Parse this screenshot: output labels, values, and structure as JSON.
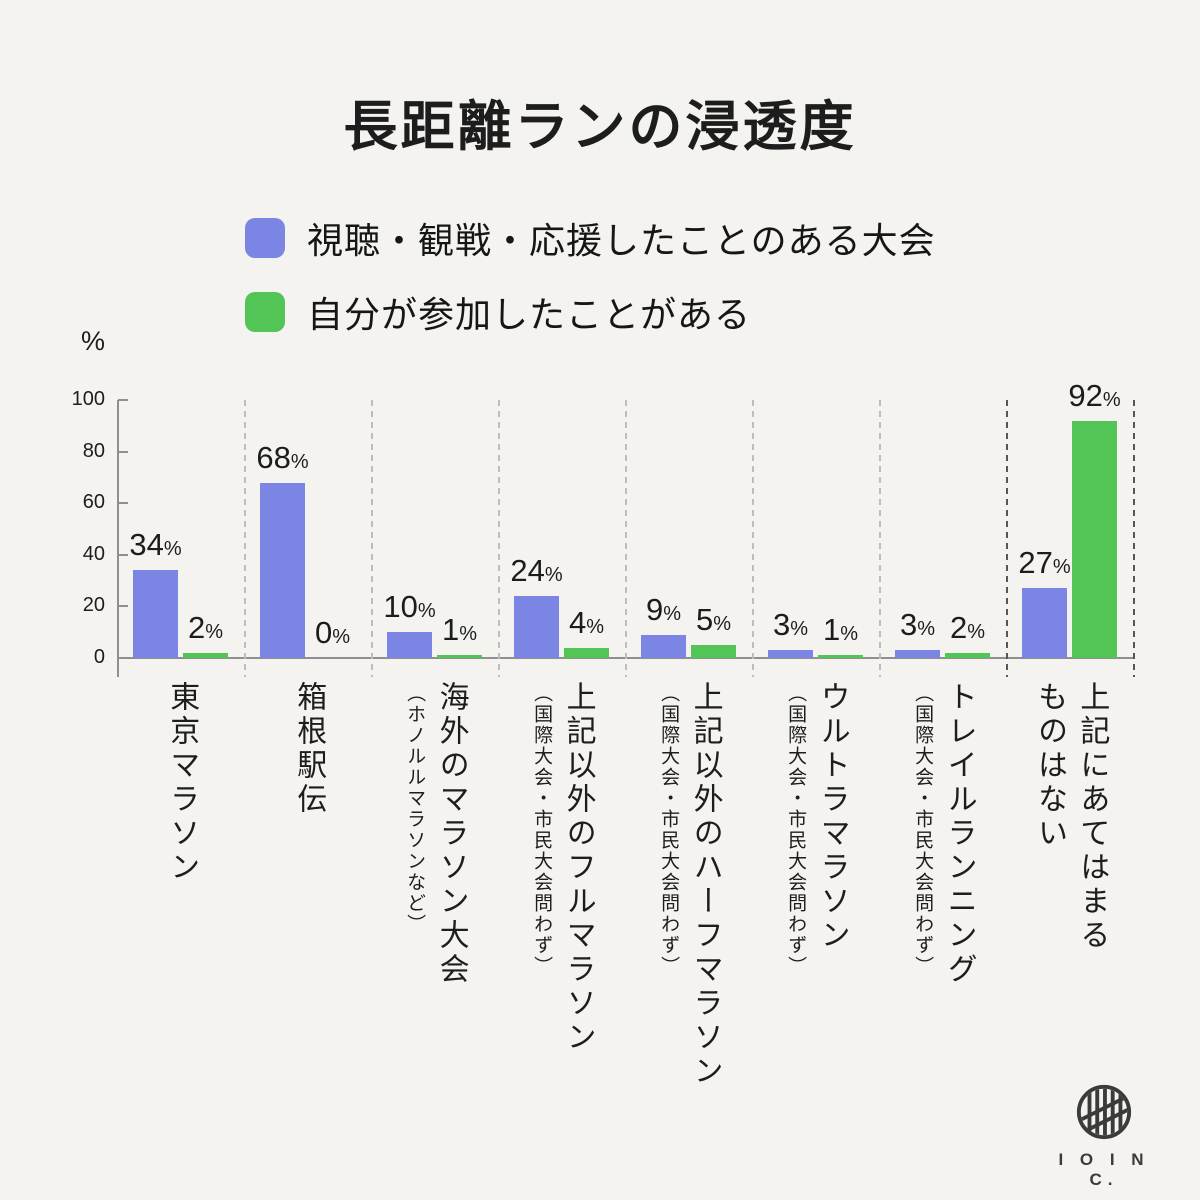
{
  "title": "長距離ランの浸透度",
  "legend": [
    {
      "label": "視聴・観戦・応援したことのある大会",
      "color": "#7B86E4"
    },
    {
      "label": "自分が参加したことがある",
      "color": "#52C556"
    }
  ],
  "axis": {
    "unit_label": "%",
    "ticks": [
      0,
      20,
      40,
      60,
      80,
      100
    ]
  },
  "chart_data": {
    "type": "bar",
    "title": "長距離ランの浸透度",
    "ylabel": "%",
    "ylim": [
      0,
      100
    ],
    "grid": false,
    "legend_position": "top-left",
    "categories": [
      {
        "label": "東京マラソン",
        "lines": [
          "東京マラソン"
        ],
        "note": ""
      },
      {
        "label": "箱根駅伝",
        "lines": [
          "箱根駅伝"
        ],
        "note": ""
      },
      {
        "label": "海外のマラソン大会",
        "lines": [
          "海外のマラソン大会"
        ],
        "note": "（ホノルルマラソンなど）"
      },
      {
        "label": "上記以外のフルマラソン",
        "lines": [
          "上記以外のフルマラソン"
        ],
        "note": "（国際大会・市民大会問わず）"
      },
      {
        "label": "上記以外のハーフマラソン",
        "lines": [
          "上記以外のハーフマラソン"
        ],
        "note": "（国際大会・市民大会問わず）"
      },
      {
        "label": "ウルトラマラソン",
        "lines": [
          "ウルトラマラソン"
        ],
        "note": "（国際大会・市民大会問わず）"
      },
      {
        "label": "トレイルランニング",
        "lines": [
          "トレイルランニング"
        ],
        "note": "（国際大会・市民大会問わず）"
      },
      {
        "label": "上記にあてはまるものはない",
        "lines": [
          "上記にあてはまる",
          "ものはない"
        ],
        "note": ""
      }
    ],
    "series": [
      {
        "name": "視聴・観戦・応援したことのある大会",
        "color": "#7B86E4",
        "values": [
          34,
          68,
          10,
          24,
          9,
          3,
          3,
          27
        ]
      },
      {
        "name": "自分が参加したことがある",
        "color": "#52C556",
        "values": [
          2,
          0,
          1,
          4,
          5,
          1,
          2,
          92
        ]
      }
    ],
    "value_suffix": "%",
    "highlight": {
      "category_index": 7
    }
  },
  "colors": {
    "background": "#F4F3F0",
    "axis": "#8f8f8f",
    "separator": "#bdbdbd",
    "separator_highlight": "#565656",
    "text": "#1d1d1d"
  },
  "logo": {
    "icon": "striped-circle-logo",
    "text": "I O I N C."
  }
}
